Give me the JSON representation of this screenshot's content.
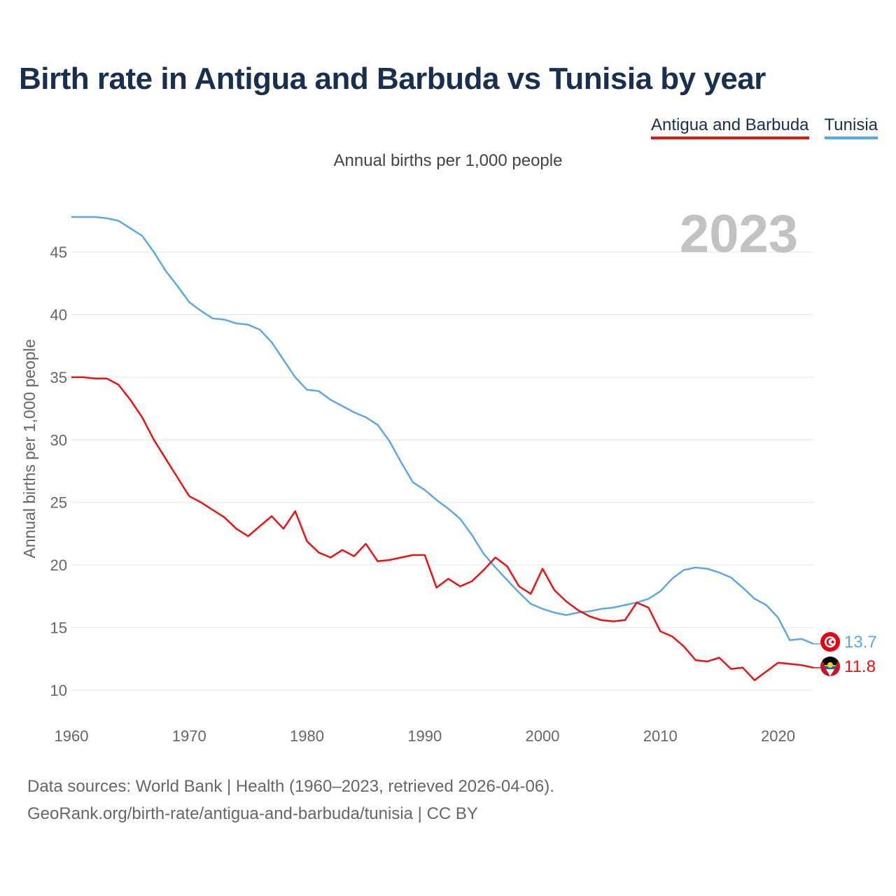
{
  "title": "Birth rate in Antigua and Barbuda vs Tunisia by year",
  "subtitle": "Annual births per 1,000 people",
  "footer": {
    "line1": "Data sources: World Bank | Health (1960–2023, retrieved 2026-04-06).",
    "line2": "GeoRank.org/birth-rate/antigua-and-barbuda/tunisia | CC BY"
  },
  "chart_data": {
    "type": "line",
    "title": "Birth rate in Antigua and Barbuda vs Tunisia by year",
    "subtitle": "Annual births per 1,000 people",
    "xlabel": "",
    "ylabel": "Annual births per 1,000 people",
    "year_watermark": "2023",
    "xlim": [
      1960,
      2023
    ],
    "ylim": [
      10,
      47.8
    ],
    "xticks": [
      1960,
      1970,
      1980,
      1990,
      2000,
      2010,
      2020
    ],
    "yticks": [
      10,
      15,
      20,
      25,
      30,
      35,
      40,
      45
    ],
    "grid": true,
    "legend_position": "top-right",
    "series": [
      {
        "name": "Antigua and Barbuda",
        "color": "#ee1111",
        "end_label": "11.8",
        "values": [
          [
            1960,
            35.0
          ],
          [
            1961,
            35.0
          ],
          [
            1962,
            34.9
          ],
          [
            1963,
            34.9
          ],
          [
            1964,
            34.4
          ],
          [
            1965,
            33.2
          ],
          [
            1966,
            31.8
          ],
          [
            1967,
            30.0
          ],
          [
            1968,
            28.5
          ],
          [
            1969,
            27.0
          ],
          [
            1970,
            25.5
          ],
          [
            1971,
            25.0
          ],
          [
            1972,
            24.4
          ],
          [
            1973,
            23.8
          ],
          [
            1974,
            22.9
          ],
          [
            1975,
            22.3
          ],
          [
            1976,
            23.1
          ],
          [
            1977,
            23.9
          ],
          [
            1978,
            22.9
          ],
          [
            1979,
            24.3
          ],
          [
            1980,
            21.9
          ],
          [
            1981,
            21.0
          ],
          [
            1982,
            20.6
          ],
          [
            1983,
            21.2
          ],
          [
            1984,
            20.7
          ],
          [
            1985,
            21.7
          ],
          [
            1986,
            20.3
          ],
          [
            1987,
            20.4
          ],
          [
            1988,
            20.6
          ],
          [
            1989,
            20.8
          ],
          [
            1990,
            20.8
          ],
          [
            1991,
            18.2
          ],
          [
            1992,
            18.9
          ],
          [
            1993,
            18.3
          ],
          [
            1994,
            18.7
          ],
          [
            1995,
            19.6
          ],
          [
            1996,
            20.6
          ],
          [
            1997,
            19.9
          ],
          [
            1998,
            18.3
          ],
          [
            1999,
            17.7
          ],
          [
            2000,
            19.7
          ],
          [
            2001,
            18.0
          ],
          [
            2002,
            17.1
          ],
          [
            2003,
            16.4
          ],
          [
            2004,
            15.9
          ],
          [
            2005,
            15.6
          ],
          [
            2006,
            15.5
          ],
          [
            2007,
            15.6
          ],
          [
            2008,
            17.0
          ],
          [
            2009,
            16.6
          ],
          [
            2010,
            14.7
          ],
          [
            2011,
            14.3
          ],
          [
            2012,
            13.5
          ],
          [
            2013,
            12.4
          ],
          [
            2014,
            12.3
          ],
          [
            2015,
            12.6
          ],
          [
            2016,
            11.7
          ],
          [
            2017,
            11.8
          ],
          [
            2018,
            10.8
          ],
          [
            2019,
            11.5
          ],
          [
            2020,
            12.2
          ],
          [
            2021,
            12.1
          ],
          [
            2022,
            12.0
          ],
          [
            2023,
            11.8
          ]
        ]
      },
      {
        "name": "Tunisia",
        "color": "#5ea6e6",
        "end_label": "13.7",
        "values": [
          [
            1960,
            47.8
          ],
          [
            1961,
            47.8
          ],
          [
            1962,
            47.8
          ],
          [
            1963,
            47.7
          ],
          [
            1964,
            47.5
          ],
          [
            1965,
            46.9
          ],
          [
            1966,
            46.3
          ],
          [
            1967,
            45.0
          ],
          [
            1968,
            43.5
          ],
          [
            1969,
            42.3
          ],
          [
            1970,
            41.0
          ],
          [
            1971,
            40.3
          ],
          [
            1972,
            39.7
          ],
          [
            1973,
            39.6
          ],
          [
            1974,
            39.3
          ],
          [
            1975,
            39.2
          ],
          [
            1976,
            38.8
          ],
          [
            1977,
            37.8
          ],
          [
            1978,
            36.4
          ],
          [
            1979,
            35.0
          ],
          [
            1980,
            34.0
          ],
          [
            1981,
            33.9
          ],
          [
            1982,
            33.2
          ],
          [
            1983,
            32.7
          ],
          [
            1984,
            32.2
          ],
          [
            1985,
            31.8
          ],
          [
            1986,
            31.2
          ],
          [
            1987,
            29.9
          ],
          [
            1988,
            28.2
          ],
          [
            1989,
            26.6
          ],
          [
            1990,
            26.0
          ],
          [
            1991,
            25.2
          ],
          [
            1992,
            24.5
          ],
          [
            1993,
            23.7
          ],
          [
            1994,
            22.4
          ],
          [
            1995,
            20.9
          ],
          [
            1996,
            19.8
          ],
          [
            1997,
            18.8
          ],
          [
            1998,
            17.8
          ],
          [
            1999,
            16.9
          ],
          [
            2000,
            16.5
          ],
          [
            2001,
            16.2
          ],
          [
            2002,
            16.0
          ],
          [
            2003,
            16.2
          ],
          [
            2004,
            16.3
          ],
          [
            2005,
            16.5
          ],
          [
            2006,
            16.6
          ],
          [
            2007,
            16.8
          ],
          [
            2008,
            17.0
          ],
          [
            2009,
            17.3
          ],
          [
            2010,
            17.9
          ],
          [
            2011,
            18.9
          ],
          [
            2012,
            19.6
          ],
          [
            2013,
            19.8
          ],
          [
            2014,
            19.7
          ],
          [
            2015,
            19.4
          ],
          [
            2016,
            19.0
          ],
          [
            2017,
            18.2
          ],
          [
            2018,
            17.3
          ],
          [
            2019,
            16.8
          ],
          [
            2020,
            15.8
          ],
          [
            2021,
            14.0
          ],
          [
            2022,
            14.1
          ],
          [
            2023,
            13.7
          ]
        ]
      }
    ]
  }
}
